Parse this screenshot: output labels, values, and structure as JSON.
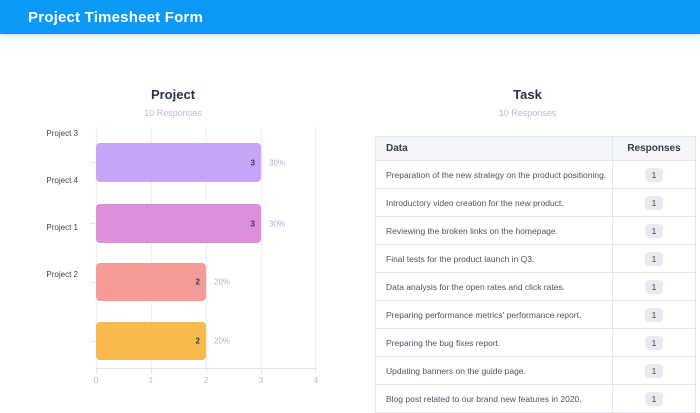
{
  "header": {
    "title": "Project Timesheet Form"
  },
  "colors": {
    "header_bg": "#0b99f5",
    "bar_colors": [
      "#c7a5f6",
      "#db90db",
      "#f59b98",
      "#f8ba4b"
    ],
    "grid_line": "#eceef5",
    "axis_line": "#dfe3ee",
    "title_text": "#2b3249",
    "subtitle_text": "#b8bdcf",
    "percent_label": "#adb3c7",
    "table_header_bg": "#f4f5f8",
    "table_border": "#e4e6ed",
    "badge_bg": "#e9eaef"
  },
  "chart_data": [
    {
      "type": "bar",
      "orientation": "horizontal",
      "title": "Project",
      "subtitle": "10 Responses",
      "categories": [
        "Project 3",
        "Project 4",
        "Project 1",
        "Project 2"
      ],
      "values": [
        3,
        3,
        2,
        2
      ],
      "value_labels": [
        "3",
        "3",
        "2",
        "2"
      ],
      "percent_labels": [
        "30%",
        "30%",
        "20%",
        "20%"
      ],
      "bar_colors": [
        "#c7a5f6",
        "#db90db",
        "#f59b98",
        "#f8ba4b"
      ],
      "xlim": [
        0,
        4
      ],
      "x_ticks": [
        "0",
        "1",
        "2",
        "3",
        "4"
      ],
      "grid": true,
      "legend": false
    },
    {
      "type": "table",
      "title": "Task",
      "subtitle": "10 Responses",
      "columns": [
        "Data",
        "Responses"
      ],
      "rows": [
        [
          "Preparation of the new strategy on the product positioning.",
          "1"
        ],
        [
          "Introductory video creation for the new product.",
          "1"
        ],
        [
          "Reviewing the broken links on the homepage.",
          "1"
        ],
        [
          "Final tests for the product launch in Q3.",
          "1"
        ],
        [
          "Data analysis for the open rates and click rates.",
          "1"
        ],
        [
          "Preparing performance metrics' performance report.",
          "1"
        ],
        [
          "Preparing the bug fixes report.",
          "1"
        ],
        [
          "Updating banners on the guide page.",
          "1"
        ],
        [
          "Blog post related to our brand new features in 2020.",
          "1"
        ]
      ]
    }
  ]
}
